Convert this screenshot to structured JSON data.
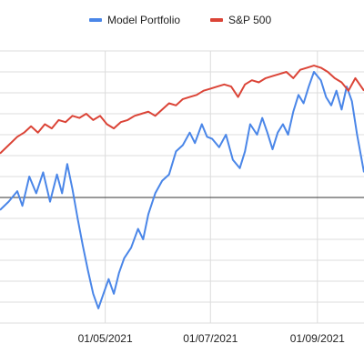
{
  "chart_data": {
    "type": "line",
    "title": "",
    "xlabel": "",
    "ylabel": "",
    "grid": true,
    "legend": "top",
    "baseline": 0,
    "x_ticks": [
      {
        "label": "01/05/2021",
        "date": "2021-05-01"
      },
      {
        "label": "01/07/2021",
        "date": "2021-07-01"
      },
      {
        "label": "01/09/2021",
        "date": "2021-09-01"
      }
    ],
    "xlim": [
      "2021-03-01",
      "2021-09-28"
    ],
    "ylim": [
      -6,
      7
    ],
    "series": [
      {
        "name": "Model Portfolio",
        "color": "#4a86e8",
        "points": [
          [
            "2021-03-01",
            -0.6
          ],
          [
            "2021-03-06",
            -0.2
          ],
          [
            "2021-03-11",
            0.3
          ],
          [
            "2021-03-14",
            -0.4
          ],
          [
            "2021-03-18",
            1.0
          ],
          [
            "2021-03-22",
            0.2
          ],
          [
            "2021-03-26",
            1.2
          ],
          [
            "2021-03-30",
            -0.2
          ],
          [
            "2021-04-03",
            1.1
          ],
          [
            "2021-04-06",
            0.2
          ],
          [
            "2021-04-09",
            1.6
          ],
          [
            "2021-04-12",
            0.4
          ],
          [
            "2021-04-15",
            -1.0
          ],
          [
            "2021-04-18",
            -2.3
          ],
          [
            "2021-04-21",
            -3.5
          ],
          [
            "2021-04-24",
            -4.6
          ],
          [
            "2021-04-27",
            -5.3
          ],
          [
            "2021-04-30",
            -4.6
          ],
          [
            "2021-05-03",
            -3.9
          ],
          [
            "2021-05-06",
            -4.6
          ],
          [
            "2021-05-09",
            -3.6
          ],
          [
            "2021-05-12",
            -2.9
          ],
          [
            "2021-05-16",
            -2.4
          ],
          [
            "2021-05-20",
            -1.5
          ],
          [
            "2021-05-23",
            -2.0
          ],
          [
            "2021-05-26",
            -0.8
          ],
          [
            "2021-05-30",
            0.2
          ],
          [
            "2021-06-03",
            0.8
          ],
          [
            "2021-06-07",
            1.1
          ],
          [
            "2021-06-11",
            2.2
          ],
          [
            "2021-06-15",
            2.5
          ],
          [
            "2021-06-19",
            3.1
          ],
          [
            "2021-06-22",
            2.6
          ],
          [
            "2021-06-26",
            3.5
          ],
          [
            "2021-06-29",
            2.9
          ],
          [
            "2021-07-02",
            2.8
          ],
          [
            "2021-07-06",
            2.4
          ],
          [
            "2021-07-10",
            3.0
          ],
          [
            "2021-07-14",
            1.8
          ],
          [
            "2021-07-18",
            1.4
          ],
          [
            "2021-07-21",
            2.2
          ],
          [
            "2021-07-24",
            3.5
          ],
          [
            "2021-07-28",
            3.0
          ],
          [
            "2021-07-31",
            3.8
          ],
          [
            "2021-08-03",
            3.1
          ],
          [
            "2021-08-06",
            2.3
          ],
          [
            "2021-08-09",
            3.1
          ],
          [
            "2021-08-12",
            3.5
          ],
          [
            "2021-08-15",
            3.0
          ],
          [
            "2021-08-18",
            4.1
          ],
          [
            "2021-08-21",
            4.9
          ],
          [
            "2021-08-24",
            4.5
          ],
          [
            "2021-08-27",
            5.3
          ],
          [
            "2021-08-30",
            6.0
          ],
          [
            "2021-09-03",
            5.6
          ],
          [
            "2021-09-06",
            4.8
          ],
          [
            "2021-09-09",
            4.4
          ],
          [
            "2021-09-12",
            5.1
          ],
          [
            "2021-09-15",
            4.2
          ],
          [
            "2021-09-18",
            5.3
          ],
          [
            "2021-09-21",
            4.6
          ],
          [
            "2021-09-24",
            3.0
          ],
          [
            "2021-09-28",
            1.2
          ]
        ]
      },
      {
        "name": "S&P 500",
        "color": "#db4437",
        "points": [
          [
            "2021-03-01",
            2.1
          ],
          [
            "2021-03-06",
            2.5
          ],
          [
            "2021-03-11",
            2.9
          ],
          [
            "2021-03-15",
            3.1
          ],
          [
            "2021-03-19",
            3.4
          ],
          [
            "2021-03-23",
            3.1
          ],
          [
            "2021-03-27",
            3.5
          ],
          [
            "2021-03-31",
            3.3
          ],
          [
            "2021-04-04",
            3.7
          ],
          [
            "2021-04-08",
            3.6
          ],
          [
            "2021-04-12",
            3.9
          ],
          [
            "2021-04-16",
            3.8
          ],
          [
            "2021-04-20",
            4.0
          ],
          [
            "2021-04-24",
            3.7
          ],
          [
            "2021-04-28",
            3.9
          ],
          [
            "2021-05-02",
            3.5
          ],
          [
            "2021-05-06",
            3.3
          ],
          [
            "2021-05-10",
            3.6
          ],
          [
            "2021-05-14",
            3.7
          ],
          [
            "2021-05-18",
            3.9
          ],
          [
            "2021-05-22",
            4.0
          ],
          [
            "2021-05-26",
            4.1
          ],
          [
            "2021-05-30",
            3.9
          ],
          [
            "2021-06-03",
            4.2
          ],
          [
            "2021-06-07",
            4.5
          ],
          [
            "2021-06-11",
            4.4
          ],
          [
            "2021-06-15",
            4.7
          ],
          [
            "2021-06-19",
            4.8
          ],
          [
            "2021-06-23",
            4.9
          ],
          [
            "2021-06-27",
            5.1
          ],
          [
            "2021-07-01",
            5.2
          ],
          [
            "2021-07-05",
            5.3
          ],
          [
            "2021-07-09",
            5.4
          ],
          [
            "2021-07-13",
            5.3
          ],
          [
            "2021-07-17",
            4.8
          ],
          [
            "2021-07-21",
            5.4
          ],
          [
            "2021-07-25",
            5.6
          ],
          [
            "2021-07-29",
            5.5
          ],
          [
            "2021-08-02",
            5.7
          ],
          [
            "2021-08-06",
            5.8
          ],
          [
            "2021-08-10",
            5.9
          ],
          [
            "2021-08-14",
            6.0
          ],
          [
            "2021-08-18",
            5.7
          ],
          [
            "2021-08-22",
            6.1
          ],
          [
            "2021-08-26",
            6.2
          ],
          [
            "2021-08-30",
            6.3
          ],
          [
            "2021-09-03",
            6.2
          ],
          [
            "2021-09-07",
            6.0
          ],
          [
            "2021-09-11",
            5.7
          ],
          [
            "2021-09-15",
            5.5
          ],
          [
            "2021-09-19",
            5.1
          ],
          [
            "2021-09-23",
            5.7
          ],
          [
            "2021-09-28",
            5.1
          ]
        ]
      }
    ]
  }
}
